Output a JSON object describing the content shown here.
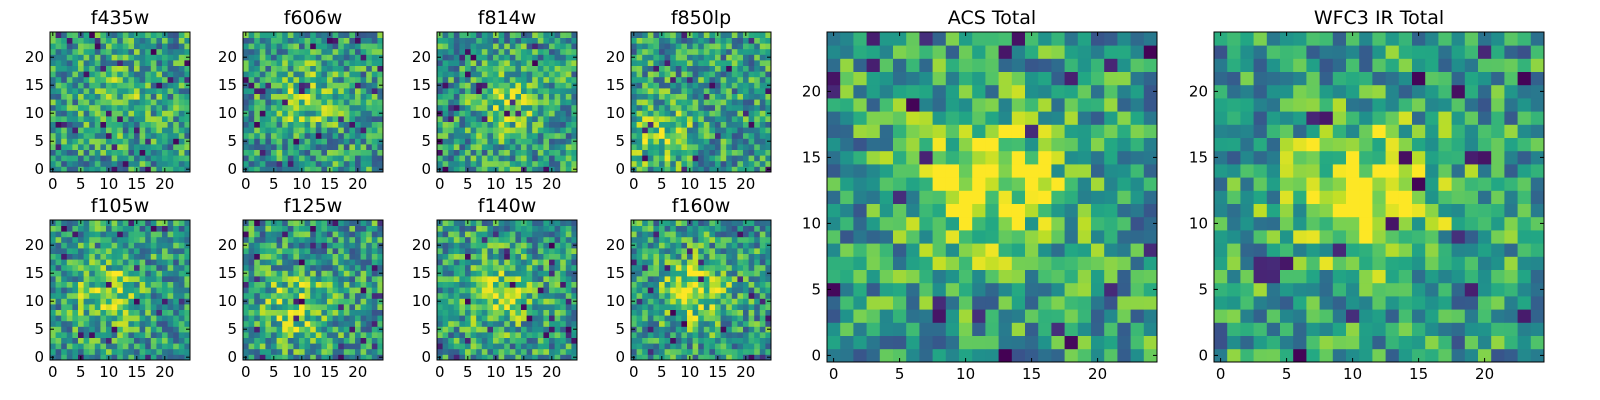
{
  "figure": {
    "description_free": true
  },
  "chart_data": [
    {
      "type": "heatmap",
      "title": "f435w",
      "grid": [
        25,
        25
      ],
      "xlim": [
        0,
        25
      ],
      "ylim": [
        0,
        25
      ],
      "xticks": [
        "0",
        "5",
        "10",
        "15",
        "20"
      ],
      "yticks": [
        "0",
        "5",
        "10",
        "15",
        "20"
      ],
      "colormap": "viridis",
      "seed": 11,
      "blob": [
        12,
        13,
        0.15
      ]
    },
    {
      "type": "heatmap",
      "title": "f606w",
      "grid": [
        25,
        25
      ],
      "xlim": [
        0,
        25
      ],
      "ylim": [
        0,
        25
      ],
      "xticks": [
        "0",
        "5",
        "10",
        "15",
        "20"
      ],
      "yticks": [
        "0",
        "5",
        "10",
        "15",
        "20"
      ],
      "colormap": "viridis",
      "seed": 23,
      "blob": [
        11,
        13,
        0.25
      ]
    },
    {
      "type": "heatmap",
      "title": "f814w",
      "grid": [
        25,
        25
      ],
      "xlim": [
        0,
        25
      ],
      "ylim": [
        0,
        25
      ],
      "xticks": [
        "0",
        "5",
        "10",
        "15",
        "20"
      ],
      "yticks": [
        "0",
        "5",
        "10",
        "15",
        "20"
      ],
      "colormap": "viridis",
      "seed": 37,
      "blob": [
        12,
        12,
        0.25
      ]
    },
    {
      "type": "heatmap",
      "title": "f850lp",
      "grid": [
        25,
        25
      ],
      "xlim": [
        0,
        25
      ],
      "ylim": [
        0,
        25
      ],
      "xticks": [
        "0",
        "5",
        "10",
        "15",
        "20"
      ],
      "yticks": [
        "0",
        "5",
        "10",
        "15",
        "20"
      ],
      "colormap": "viridis",
      "seed": 41,
      "blob": [
        5,
        6,
        0.25
      ]
    },
    {
      "type": "heatmap",
      "title": "f105w",
      "grid": [
        25,
        25
      ],
      "xlim": [
        0,
        25
      ],
      "ylim": [
        0,
        25
      ],
      "xticks": [
        "0",
        "5",
        "10",
        "15",
        "20"
      ],
      "yticks": [
        "0",
        "5",
        "10",
        "15",
        "20"
      ],
      "colormap": "viridis",
      "seed": 53,
      "blob": [
        10,
        11,
        0.3
      ]
    },
    {
      "type": "heatmap",
      "title": "f125w",
      "grid": [
        25,
        25
      ],
      "xlim": [
        0,
        25
      ],
      "ylim": [
        0,
        25
      ],
      "xticks": [
        "0",
        "5",
        "10",
        "15",
        "20"
      ],
      "yticks": [
        "0",
        "5",
        "10",
        "15",
        "20"
      ],
      "colormap": "viridis",
      "seed": 67,
      "blob": [
        9,
        9,
        0.3
      ]
    },
    {
      "type": "heatmap",
      "title": "f140w",
      "grid": [
        25,
        25
      ],
      "xlim": [
        0,
        25
      ],
      "ylim": [
        0,
        25
      ],
      "xticks": [
        "0",
        "5",
        "10",
        "15",
        "20"
      ],
      "yticks": [
        "0",
        "5",
        "10",
        "15",
        "20"
      ],
      "colormap": "viridis",
      "seed": 79,
      "blob": [
        10,
        11,
        0.3
      ]
    },
    {
      "type": "heatmap",
      "title": "f160w",
      "grid": [
        25,
        25
      ],
      "xlim": [
        0,
        25
      ],
      "ylim": [
        0,
        25
      ],
      "xticks": [
        "0",
        "5",
        "10",
        "15",
        "20"
      ],
      "yticks": [
        "0",
        "5",
        "10",
        "15",
        "20"
      ],
      "colormap": "viridis",
      "seed": 83,
      "blob": [
        11,
        12,
        0.35
      ]
    },
    {
      "type": "heatmap",
      "title": "ACS Total",
      "grid": [
        25,
        25
      ],
      "xlim": [
        0,
        25
      ],
      "ylim": [
        0,
        25
      ],
      "xticks": [
        "0",
        "5",
        "10",
        "15",
        "20"
      ],
      "yticks": [
        "0",
        "5",
        "10",
        "15",
        "20"
      ],
      "colormap": "viridis",
      "seed": 97,
      "blob": [
        12,
        13,
        0.45
      ]
    },
    {
      "type": "heatmap",
      "title": "WFC3 IR Total",
      "grid": [
        25,
        25
      ],
      "xlim": [
        0,
        25
      ],
      "ylim": [
        0,
        25
      ],
      "xticks": [
        "0",
        "5",
        "10",
        "15",
        "20"
      ],
      "yticks": [
        "0",
        "5",
        "10",
        "15",
        "20"
      ],
      "colormap": "viridis",
      "seed": 101,
      "blob": [
        11,
        12,
        0.5
      ]
    }
  ]
}
